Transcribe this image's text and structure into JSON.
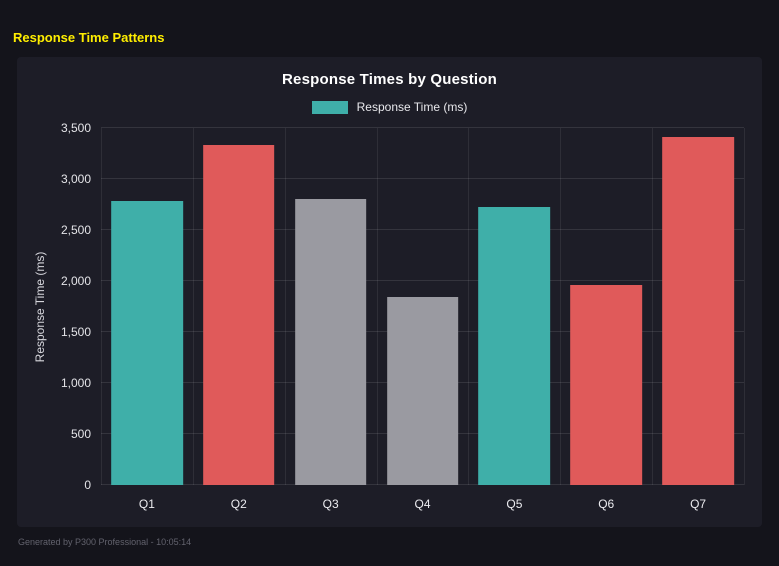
{
  "page": {
    "title": "Response Time Patterns",
    "footer": "Generated by P300 Professional - 10:05:14"
  },
  "colors": {
    "page_background": "#14141b",
    "card_background": "#1d1d27",
    "title_yellow": "#ffee00"
  },
  "chart_data": {
    "type": "bar",
    "title": "Response Times by Question",
    "legend": "Response Time (ms)",
    "legend_position": "top",
    "categories": [
      "Q1",
      "Q2",
      "Q3",
      "Q4",
      "Q5",
      "Q6",
      "Q7"
    ],
    "values": [
      2780,
      3330,
      2800,
      1840,
      2730,
      1960,
      3410
    ],
    "bar_colors": [
      "teal",
      "red",
      "gray",
      "gray",
      "teal",
      "red",
      "red"
    ],
    "palette": {
      "teal": "#3fafa9",
      "red": "#e05a5a",
      "gray": "#9a9aa1"
    },
    "xlabel": "",
    "ylabel": "Response Time (ms)",
    "ylim": [
      0,
      3500
    ],
    "yticks": [
      0,
      500,
      1000,
      1500,
      2000,
      2500,
      3000,
      3500
    ],
    "ytick_labels": [
      "0",
      "500",
      "1,000",
      "1,500",
      "2,000",
      "2,500",
      "3,000",
      "3,500"
    ],
    "grid": true
  }
}
